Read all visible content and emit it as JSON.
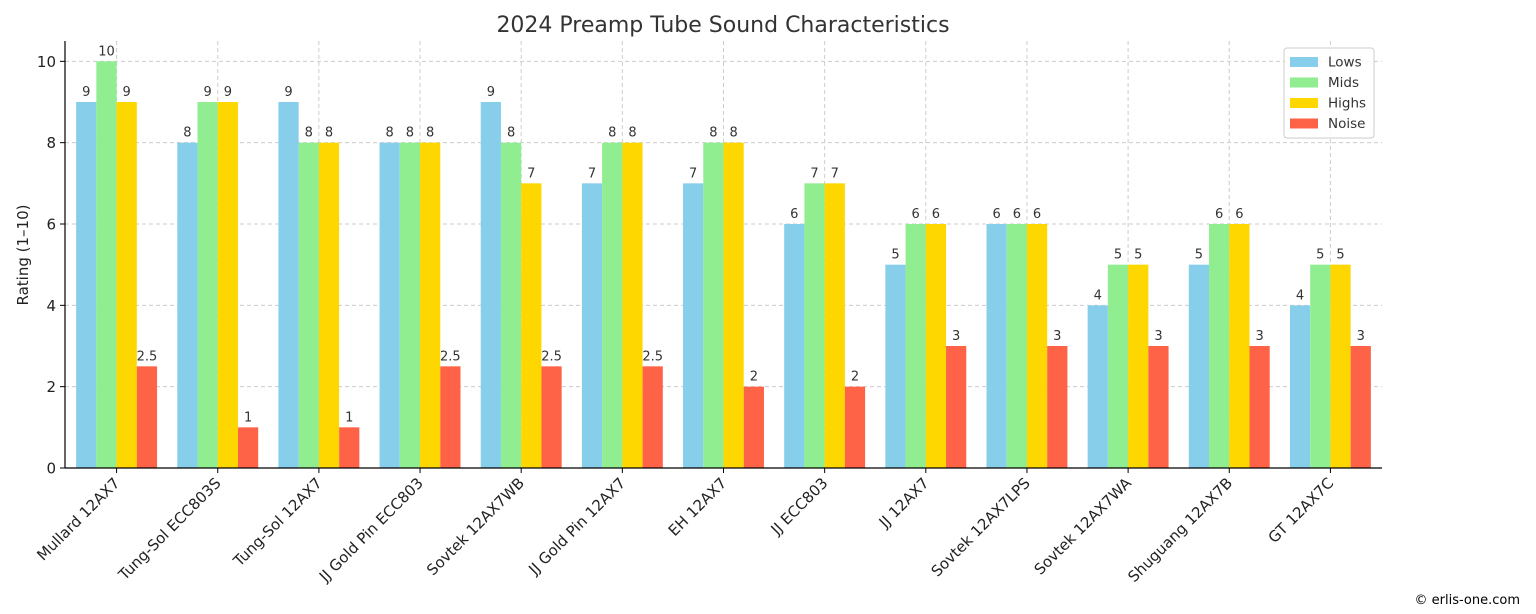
{
  "chart_data": {
    "type": "bar",
    "title": "2024 Preamp Tube Sound Characteristics",
    "xlabel": "",
    "ylabel": "Rating (1–10)",
    "ylim": [
      0,
      10.5
    ],
    "yticks": [
      0,
      2,
      4,
      6,
      8,
      10
    ],
    "grid": true,
    "legend_position": "top-right",
    "categories": [
      "Mullard 12AX7",
      "Tung-Sol ECC803S",
      "Tung-Sol 12AX7",
      "JJ Gold Pin ECC803",
      "Sovtek 12AX7WB",
      "JJ Gold Pin 12AX7",
      "EH 12AX7",
      "JJ ECC803",
      "JJ 12AX7",
      "Sovtek 12AX7LPS",
      "Sovtek 12AX7WA",
      "Shuguang 12AX7B",
      "GT 12AX7C"
    ],
    "series": [
      {
        "name": "Lows",
        "color": "#87CEEB",
        "values": [
          9,
          8,
          9,
          8,
          9,
          7,
          7,
          6,
          5,
          6,
          4,
          5,
          4
        ]
      },
      {
        "name": "Mids",
        "color": "#90EE90",
        "values": [
          10,
          9,
          8,
          8,
          8,
          8,
          8,
          7,
          6,
          6,
          5,
          6,
          5
        ]
      },
      {
        "name": "Highs",
        "color": "#FFD700",
        "values": [
          9,
          9,
          8,
          8,
          7,
          8,
          8,
          7,
          6,
          6,
          5,
          6,
          5
        ]
      },
      {
        "name": "Noise",
        "color": "#FF6347",
        "values": [
          2.5,
          1,
          1,
          2.5,
          2.5,
          2.5,
          2,
          2,
          3,
          3,
          3,
          3,
          3
        ]
      }
    ]
  },
  "footer": {
    "copyright": "© erlis-one.com"
  }
}
